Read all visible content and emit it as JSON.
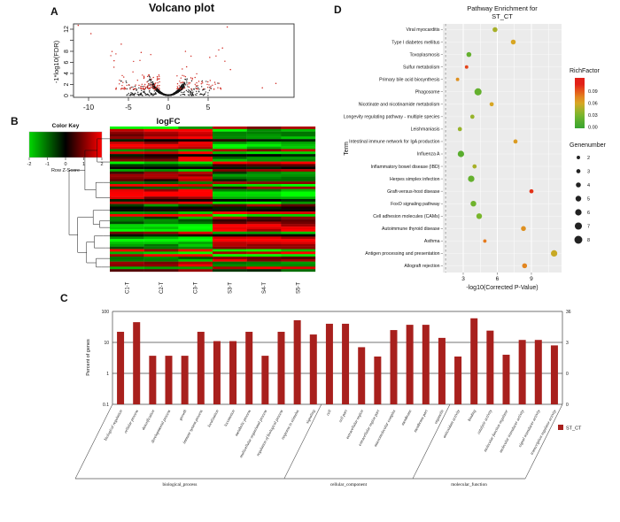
{
  "panels": {
    "a": "A",
    "b": "B",
    "c": "C",
    "d": "D"
  },
  "colors": {
    "volcano_significant": "#d02a22",
    "volcano_not_significant": "#141414",
    "bar_fill": "#a8201d",
    "bar_right_axis": "#cc4038",
    "heatmap_low": "#00d800",
    "heatmap_mid": "#000000",
    "heatmap_high": "#ff0000",
    "dotplot_panel_bg": "#ebebeb",
    "rich_low": "#38a430",
    "rich_high": "#e2261d"
  },
  "chart_data": [
    {
      "type": "scatter",
      "panel": "A",
      "title": "Volcano plot",
      "xlabel": "logFC",
      "ylabel": "-1*log10(FDR)",
      "x_ticks": [
        -10,
        -5,
        0,
        5
      ],
      "y_ticks": [
        0,
        2,
        4,
        6,
        8,
        12
      ],
      "xlim": [
        -12,
        15
      ],
      "ylim": [
        0,
        13.2
      ],
      "grid": false,
      "series": [
        {
          "name": "not significant",
          "color": "#141414",
          "n_points": 1550,
          "pattern": "dense U-shaped black cloud centred at logFC 0, mostly y < 2"
        },
        {
          "name": "significant (low FDR)",
          "color": "#d02a22",
          "n_points": 175,
          "pattern": "red points scattered at 1 < |logFC| < 11, y from 1 up to 12.7, more on negative side"
        }
      ]
    },
    {
      "type": "heatmap",
      "panel": "B",
      "color_key_title": "Color Key",
      "color_key_axis_label": "Row Z-Score",
      "color_key_ticks": [
        -2,
        -1,
        0,
        1,
        2
      ],
      "columns": [
        "C1-T",
        "C2-T",
        "C3-T",
        "S3-T",
        "S4-T",
        "S5-T"
      ],
      "n_rows": 58,
      "colormap": {
        "low": "#00d800",
        "mid": "#000000",
        "high": "#ff0000",
        "range": [
          -2,
          2
        ]
      },
      "description": "Row-clustered DEG heatmap with left dendrogram; C samples and S samples show opposite row z-scores"
    },
    {
      "type": "bar",
      "panel": "C",
      "ylabel": "Percent of genes",
      "ylog": true,
      "ylim": [
        0.1,
        100
      ],
      "y_ticks_left": [
        "100",
        "10",
        "1",
        "0.1"
      ],
      "y_ticks_right": [
        "36",
        "3",
        "0",
        "0"
      ],
      "legend": {
        "label": "ST_CT",
        "color": "#a8201d"
      },
      "groups": [
        {
          "label": "biological_process",
          "items": [
            {
              "category": "biological regulation",
              "value": 22
            },
            {
              "category": "cellular process",
              "value": 45
            },
            {
              "category": "detoxification",
              "value": 3.7
            },
            {
              "category": "developmental process",
              "value": 3.7
            },
            {
              "category": "growth",
              "value": 3.7
            },
            {
              "category": "immune system process",
              "value": 22
            },
            {
              "category": "localization",
              "value": 11
            },
            {
              "category": "locomotion",
              "value": 11
            },
            {
              "category": "metabolic process",
              "value": 22
            },
            {
              "category": "multicellular organismal process",
              "value": 3.7
            },
            {
              "category": "regulation of biological process",
              "value": 22
            },
            {
              "category": "response to stimulus",
              "value": 52
            },
            {
              "category": "signaling",
              "value": 18
            }
          ]
        },
        {
          "label": "cellular_component",
          "items": [
            {
              "category": "cell",
              "value": 40
            },
            {
              "category": "cell part",
              "value": 40
            },
            {
              "category": "extracellular region",
              "value": 7
            },
            {
              "category": "extracellular region part",
              "value": 3.5
            },
            {
              "category": "macromolecular complex",
              "value": 25
            },
            {
              "category": "membrane",
              "value": 37
            },
            {
              "category": "membrane part",
              "value": 37
            },
            {
              "category": "organelle",
              "value": 14
            }
          ]
        },
        {
          "label": "molecular_function",
          "items": [
            {
              "category": "antioxidant activity",
              "value": 3.5
            },
            {
              "category": "binding",
              "value": 60
            },
            {
              "category": "catalytic activity",
              "value": 24
            },
            {
              "category": "molecular function regulator",
              "value": 4
            },
            {
              "category": "molecular transducer activity",
              "value": 12
            },
            {
              "category": "signal transducer activity",
              "value": 12
            },
            {
              "category": "transcription regulator activity",
              "value": 8
            }
          ]
        }
      ]
    },
    {
      "type": "scatter",
      "panel": "D",
      "title_line1": "Pathway Enrichment for",
      "title_line2": "ST_CT",
      "xlabel": "-log10(Corrected P-Value)",
      "ylabel": "Term",
      "x_ticks": [
        3,
        6,
        9
      ],
      "xlim": [
        1.2,
        13.5
      ],
      "threshold_line_x": 1.45,
      "legend_richfactor": {
        "title": "RichFactor",
        "ticks": [
          "0.09",
          "0.06",
          "0.03",
          "0.00"
        ]
      },
      "legend_genenumber": {
        "title": "Genenumber",
        "values": [
          2,
          3,
          4,
          5,
          6,
          7,
          8
        ]
      },
      "points": [
        {
          "term": "Viral myocarditis",
          "x": 5.8,
          "rich_factor": 0.045,
          "gene_number": 4
        },
        {
          "term": "Type I diabetes mellitus",
          "x": 7.4,
          "rich_factor": 0.06,
          "gene_number": 4
        },
        {
          "term": "Toxoplasmosis",
          "x": 3.5,
          "rich_factor": 0.02,
          "gene_number": 4
        },
        {
          "term": "Sulfur metabolism",
          "x": 3.3,
          "rich_factor": 0.095,
          "gene_number": 2
        },
        {
          "term": "Primary bile acid biosynthesis",
          "x": 2.5,
          "rich_factor": 0.07,
          "gene_number": 2
        },
        {
          "term": "Phagosome",
          "x": 4.3,
          "rich_factor": 0.02,
          "gene_number": 7
        },
        {
          "term": "Nicotinate and nicotinamide metabolism",
          "x": 5.5,
          "rich_factor": 0.06,
          "gene_number": 3
        },
        {
          "term": "Longevity regulating pathway - multiple species",
          "x": 3.8,
          "rich_factor": 0.04,
          "gene_number": 3
        },
        {
          "term": "Leishmaniasis",
          "x": 2.7,
          "rich_factor": 0.04,
          "gene_number": 3
        },
        {
          "term": "Intestinal immune network for IgA production",
          "x": 7.6,
          "rich_factor": 0.065,
          "gene_number": 3
        },
        {
          "term": "Influenza A",
          "x": 2.8,
          "rich_factor": 0.015,
          "gene_number": 6
        },
        {
          "term": "Inflammatory bowel disease (IBD)",
          "x": 4.0,
          "rich_factor": 0.045,
          "gene_number": 3
        },
        {
          "term": "Herpes simplex infection",
          "x": 3.7,
          "rich_factor": 0.02,
          "gene_number": 6
        },
        {
          "term": "Graft-versus-host disease",
          "x": 9.0,
          "rich_factor": 0.1,
          "gene_number": 3
        },
        {
          "term": "FoxO signaling pathway",
          "x": 3.9,
          "rich_factor": 0.025,
          "gene_number": 5
        },
        {
          "term": "Cell adhesion molecules (CAMs)",
          "x": 4.4,
          "rich_factor": 0.03,
          "gene_number": 5
        },
        {
          "term": "Autoimmune thyroid disease",
          "x": 8.3,
          "rich_factor": 0.07,
          "gene_number": 4
        },
        {
          "term": "Asthma",
          "x": 4.9,
          "rich_factor": 0.08,
          "gene_number": 2
        },
        {
          "term": "Antigen processing and presentation",
          "x": 11.0,
          "rich_factor": 0.055,
          "gene_number": 6
        },
        {
          "term": "Allograft rejection",
          "x": 8.4,
          "rich_factor": 0.075,
          "gene_number": 4
        }
      ]
    }
  ]
}
